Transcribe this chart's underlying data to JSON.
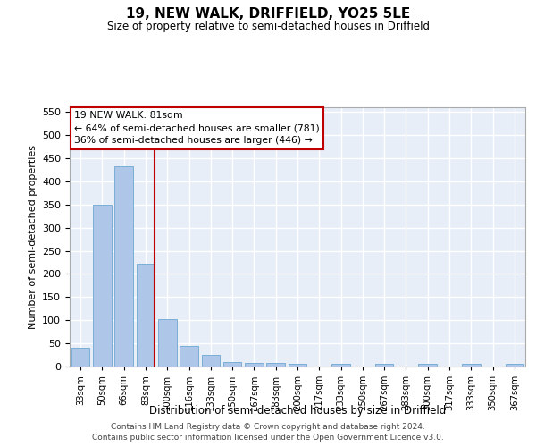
{
  "title": "19, NEW WALK, DRIFFIELD, YO25 5LE",
  "subtitle": "Size of property relative to semi-detached houses in Driffield",
  "xlabel": "Distribution of semi-detached houses by size in Driffield",
  "ylabel": "Number of semi-detached properties",
  "property_label": "19 NEW WALK: 81sqm",
  "annotation_line": "← 64% of semi-detached houses are smaller (781)",
  "annotation_line2": "36% of semi-detached houses are larger (446) →",
  "categories": [
    "33sqm",
    "50sqm",
    "66sqm",
    "83sqm",
    "100sqm",
    "116sqm",
    "133sqm",
    "150sqm",
    "167sqm",
    "183sqm",
    "200sqm",
    "217sqm",
    "233sqm",
    "250sqm",
    "267sqm",
    "283sqm",
    "300sqm",
    "317sqm",
    "333sqm",
    "350sqm",
    "367sqm"
  ],
  "values": [
    40,
    350,
    432,
    223,
    102,
    44,
    25,
    10,
    8,
    8,
    6,
    0,
    5,
    0,
    5,
    0,
    5,
    0,
    5,
    0,
    5
  ],
  "bar_color": "#aec6e8",
  "bar_edge_color": "#7aaed6",
  "highlight_color": "#c00000",
  "highlight_bin_index": 3,
  "ylim": [
    0,
    560
  ],
  "yticks": [
    0,
    50,
    100,
    150,
    200,
    250,
    300,
    350,
    400,
    450,
    500,
    550
  ],
  "background_color": "#e8eef8",
  "grid_color": "#ffffff",
  "footer_line1": "Contains HM Land Registry data © Crown copyright and database right 2024.",
  "footer_line2": "Contains public sector information licensed under the Open Government Licence v3.0."
}
